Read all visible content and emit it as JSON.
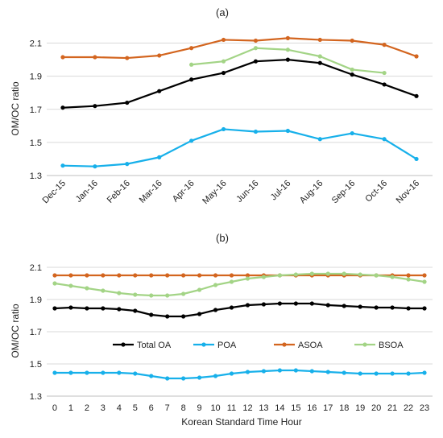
{
  "chart_data": [
    {
      "type": "line",
      "panel_label": "(a)",
      "ylabel": "OM/OC ratio",
      "xlabel": "",
      "categories": [
        "Dec-15",
        "Jan-16",
        "Feb-16",
        "Mar-16",
        "Apr-16",
        "May-16",
        "Jun-16",
        "Jul-16",
        "Aug-16",
        "Sep-16",
        "Oct-16",
        "Nov-16"
      ],
      "ylim": [
        1.3,
        2.2
      ],
      "yticks": [
        "1.3",
        "1.5",
        "1.7",
        "1.9",
        "2.1"
      ],
      "grid": true,
      "series": [
        {
          "key": "total",
          "color": "#000000",
          "values": [
            1.71,
            1.72,
            1.74,
            1.81,
            1.88,
            1.92,
            1.99,
            2.0,
            1.98,
            1.91,
            1.85,
            1.78
          ]
        },
        {
          "key": "poa",
          "color": "#17b0ea",
          "values": [
            1.36,
            1.355,
            1.37,
            1.41,
            1.51,
            1.58,
            1.565,
            1.57,
            1.52,
            1.555,
            1.52,
            1.4
          ]
        },
        {
          "key": "asoa",
          "color": "#d3651f",
          "values": [
            2.015,
            2.015,
            2.01,
            2.025,
            2.07,
            2.12,
            2.115,
            2.13,
            2.12,
            2.115,
            2.09,
            2.02
          ]
        },
        {
          "key": "bsoa",
          "color": "#a3d486",
          "values": [
            null,
            null,
            null,
            null,
            1.97,
            1.99,
            2.07,
            2.06,
            2.02,
            1.94,
            1.92,
            null
          ]
        }
      ]
    },
    {
      "type": "line",
      "panel_label": "(b)",
      "ylabel": "OM/OC ratio",
      "xlabel": "Korean Standard Time Hour",
      "categories": [
        "0",
        "1",
        "2",
        "3",
        "4",
        "5",
        "6",
        "7",
        "8",
        "9",
        "10",
        "11",
        "12",
        "13",
        "14",
        "15",
        "16",
        "17",
        "18",
        "19",
        "20",
        "21",
        "22",
        "23"
      ],
      "ylim": [
        1.3,
        2.2
      ],
      "yticks": [
        "1.3",
        "1.5",
        "1.7",
        "1.9",
        "2.1"
      ],
      "grid": true,
      "legend": {
        "placement": "middle"
      },
      "series": [
        {
          "key": "total",
          "name": "Total OA",
          "color": "#000000",
          "values": [
            1.845,
            1.85,
            1.845,
            1.845,
            1.84,
            1.83,
            1.805,
            1.795,
            1.795,
            1.81,
            1.835,
            1.85,
            1.865,
            1.87,
            1.875,
            1.875,
            1.875,
            1.865,
            1.86,
            1.855,
            1.85,
            1.85,
            1.845,
            1.845
          ]
        },
        {
          "key": "poa",
          "name": "POA",
          "color": "#17b0ea",
          "values": [
            1.445,
            1.445,
            1.445,
            1.445,
            1.445,
            1.44,
            1.425,
            1.41,
            1.41,
            1.415,
            1.425,
            1.44,
            1.45,
            1.455,
            1.46,
            1.46,
            1.455,
            1.45,
            1.445,
            1.44,
            1.44,
            1.44,
            1.44,
            1.445
          ]
        },
        {
          "key": "asoa",
          "name": "ASOA",
          "color": "#d3651f",
          "values": [
            2.05,
            2.05,
            2.05,
            2.05,
            2.05,
            2.05,
            2.05,
            2.05,
            2.05,
            2.05,
            2.05,
            2.05,
            2.05,
            2.05,
            2.05,
            2.05,
            2.05,
            2.05,
            2.05,
            2.05,
            2.05,
            2.05,
            2.05,
            2.05
          ]
        },
        {
          "key": "bsoa",
          "name": "BSOA",
          "color": "#a3d486",
          "values": [
            2.0,
            1.985,
            1.97,
            1.955,
            1.94,
            1.93,
            1.925,
            1.925,
            1.935,
            1.96,
            1.99,
            2.01,
            2.03,
            2.04,
            2.05,
            2.055,
            2.06,
            2.06,
            2.06,
            2.055,
            2.05,
            2.04,
            2.025,
            2.01
          ]
        }
      ]
    }
  ]
}
